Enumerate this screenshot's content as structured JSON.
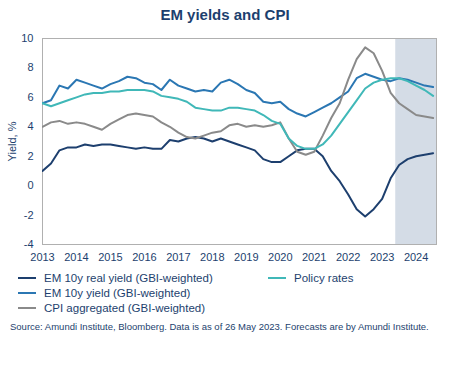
{
  "chart_data": {
    "type": "line",
    "title": "EM yields and CPI",
    "y_label": "Yield, %",
    "source": "Source: Amundi Institute, Bloomberg. Data is as of 26 May 2023. Forecasts are by Amundi Institute.",
    "x": [
      2013,
      2013.25,
      2013.5,
      2013.75,
      2014,
      2014.25,
      2014.5,
      2014.75,
      2015,
      2015.25,
      2015.5,
      2015.75,
      2016,
      2016.25,
      2016.5,
      2016.75,
      2017,
      2017.25,
      2017.5,
      2017.75,
      2018,
      2018.25,
      2018.5,
      2018.75,
      2019,
      2019.25,
      2019.5,
      2019.75,
      2020,
      2020.25,
      2020.5,
      2020.75,
      2021,
      2021.25,
      2021.5,
      2021.75,
      2022,
      2022.25,
      2022.5,
      2022.75,
      2023,
      2023.25,
      2023.5,
      2023.75,
      2024,
      2024.25,
      2024.5
    ],
    "series": [
      {
        "name": "EM 10y real yield (GBI-weighted)",
        "color": "#1d3f6e",
        "values": [
          1.0,
          1.5,
          2.4,
          2.6,
          2.6,
          2.8,
          2.7,
          2.8,
          2.8,
          2.7,
          2.6,
          2.5,
          2.6,
          2.5,
          2.5,
          3.1,
          3.0,
          3.2,
          3.3,
          3.2,
          3.0,
          3.2,
          3.0,
          2.8,
          2.6,
          2.4,
          1.8,
          1.6,
          1.6,
          2.0,
          2.4,
          2.5,
          2.5,
          2.0,
          1.0,
          0.3,
          -0.6,
          -1.6,
          -2.1,
          -1.6,
          -0.9,
          0.5,
          1.4,
          1.8,
          2.0,
          2.1,
          2.2
        ]
      },
      {
        "name": "EM 10y yield (GBI-weighted)",
        "color": "#2b77b3",
        "values": [
          5.6,
          5.8,
          6.8,
          6.6,
          7.2,
          7.0,
          6.8,
          6.6,
          6.9,
          7.1,
          7.4,
          7.3,
          7.0,
          6.9,
          6.5,
          7.2,
          6.8,
          6.6,
          6.4,
          6.5,
          6.4,
          7.0,
          7.2,
          6.9,
          6.5,
          6.3,
          5.7,
          5.6,
          5.7,
          5.2,
          4.9,
          4.7,
          5.0,
          5.3,
          5.6,
          6.0,
          6.4,
          7.3,
          7.6,
          7.4,
          7.2,
          7.1,
          7.3,
          7.2,
          7.0,
          6.8,
          6.7
        ]
      },
      {
        "name": "CPI aggregated (GBI-weighted)",
        "color": "#8a8a8a",
        "values": [
          4.0,
          4.3,
          4.4,
          4.2,
          4.3,
          4.2,
          4.0,
          3.8,
          4.2,
          4.5,
          4.8,
          4.9,
          4.8,
          4.7,
          4.3,
          4.0,
          3.6,
          3.3,
          3.2,
          3.4,
          3.6,
          3.7,
          4.1,
          4.2,
          4.0,
          4.1,
          4.0,
          4.1,
          4.3,
          3.2,
          2.3,
          2.1,
          2.3,
          3.4,
          4.6,
          5.6,
          7.2,
          8.6,
          9.4,
          9.0,
          7.8,
          6.3,
          5.6,
          5.2,
          4.8,
          4.7,
          4.6
        ]
      },
      {
        "name": "Policy rates",
        "color": "#40b8b8",
        "values": [
          5.6,
          5.4,
          5.6,
          5.8,
          6.0,
          6.2,
          6.3,
          6.3,
          6.4,
          6.4,
          6.5,
          6.5,
          6.5,
          6.4,
          6.1,
          6.0,
          5.9,
          5.7,
          5.3,
          5.2,
          5.1,
          5.1,
          5.3,
          5.3,
          5.2,
          5.1,
          4.8,
          4.4,
          4.2,
          3.2,
          2.7,
          2.5,
          2.5,
          2.8,
          3.4,
          4.2,
          5.0,
          5.8,
          6.6,
          7.0,
          7.2,
          7.3,
          7.3,
          7.1,
          6.8,
          6.5,
          6.1
        ]
      }
    ],
    "forecast_band": [
      2023.4,
      2024.6
    ],
    "xlim": [
      2013,
      2024.6
    ],
    "xticks": [
      2013,
      2014,
      2015,
      2016,
      2017,
      2018,
      2019,
      2020,
      2021,
      2022,
      2023,
      2024
    ],
    "ylim": [
      -4,
      10
    ],
    "yticks": [
      -4,
      -2,
      0,
      2,
      4,
      6,
      8,
      10
    ],
    "grid": false
  }
}
